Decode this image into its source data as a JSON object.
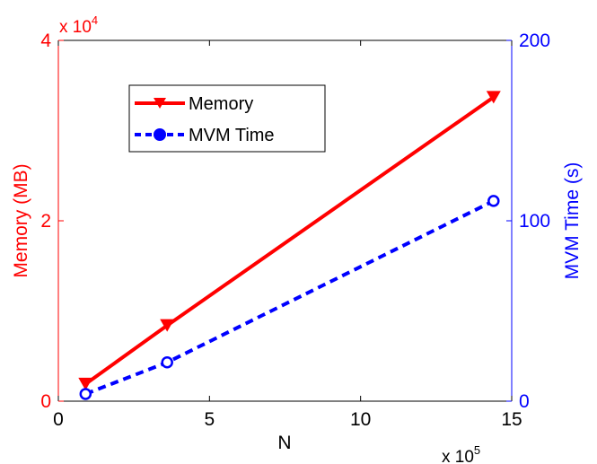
{
  "chart_data": {
    "type": "line",
    "xlabel": "N",
    "x_multiplier": "x 10",
    "x_multiplier_exp": "5",
    "xlim": [
      0,
      15
    ],
    "xticks": [
      "0",
      "5",
      "10",
      "15"
    ],
    "y_left": {
      "label": "Memory (MB)",
      "multiplier": "x 10",
      "multiplier_exp": "4",
      "lim": [
        0,
        4
      ],
      "ticks": [
        "0",
        "2",
        "4"
      ],
      "color": "#ff0000"
    },
    "y_right": {
      "label": "MVM Time (s)",
      "lim": [
        0,
        200
      ],
      "ticks": [
        "0",
        "100",
        "200"
      ],
      "color": "#0000ff"
    },
    "series": [
      {
        "name": "Memory",
        "axis": "left",
        "color": "#ff0000",
        "style": "solid",
        "marker": "triangle-down",
        "x": [
          0.9,
          3.6,
          14.4
        ],
        "y": [
          0.19,
          0.84,
          3.37
        ]
      },
      {
        "name": "MVM Time",
        "axis": "right",
        "color": "#0000ff",
        "style": "dashed",
        "marker": "circle",
        "x": [
          0.9,
          3.6,
          14.4
        ],
        "y": [
          4,
          21.5,
          111
        ]
      }
    ],
    "legend_position": "top-left",
    "grid": false
  }
}
